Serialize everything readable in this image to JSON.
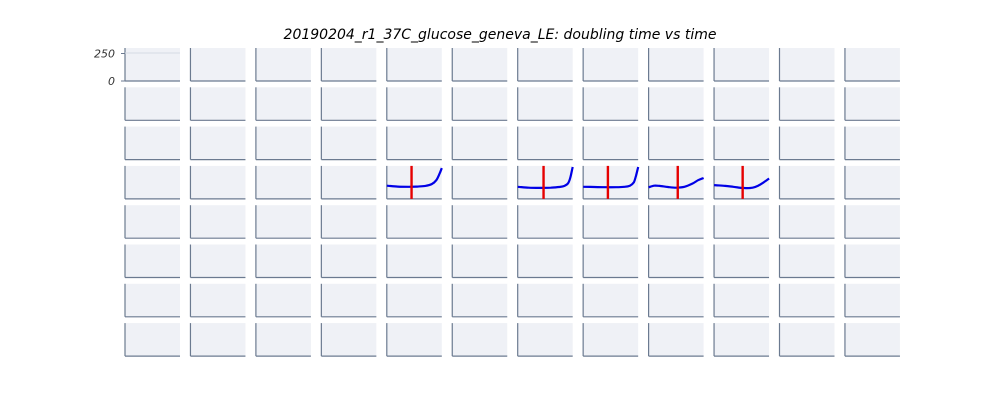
{
  "chart_data": {
    "type": "line",
    "title": "20190204_r1_37C_glucose_geneva_LE: doubling time vs time",
    "rows": 8,
    "cols": 12,
    "y_ticks": [
      "250",
      "0"
    ],
    "ylim": [
      0,
      300
    ],
    "xlim": [
      0,
      1
    ],
    "colors": {
      "line": "#0000e6",
      "marker": "#e60000",
      "panel_bg": "#eff1f6",
      "axis": "#6b7a90"
    },
    "panels": [
      {
        "row": 3,
        "col": 4,
        "x": [
          0,
          0.2,
          0.4,
          0.55,
          0.7,
          0.82,
          0.9,
          0.96,
          1.0
        ],
        "y": [
          120,
          112,
          110,
          112,
          118,
          135,
          170,
          230,
          280
        ],
        "marker_x": 0.45
      },
      {
        "row": 3,
        "col": 6,
        "x": [
          0,
          0.2,
          0.4,
          0.6,
          0.75,
          0.85,
          0.92,
          0.96,
          1.0
        ],
        "y": [
          110,
          102,
          100,
          102,
          108,
          118,
          145,
          200,
          290
        ],
        "marker_x": 0.47
      },
      {
        "row": 3,
        "col": 7,
        "x": [
          0,
          0.2,
          0.4,
          0.6,
          0.75,
          0.85,
          0.92,
          0.96,
          1.0
        ],
        "y": [
          110,
          108,
          106,
          106,
          110,
          120,
          150,
          210,
          290
        ],
        "marker_x": 0.45
      },
      {
        "row": 3,
        "col": 8,
        "x": [
          0,
          0.1,
          0.2,
          0.35,
          0.5,
          0.65,
          0.8,
          0.9,
          1.0
        ],
        "y": [
          105,
          120,
          118,
          108,
          102,
          110,
          140,
          170,
          190
        ],
        "marker_x": 0.53
      },
      {
        "row": 3,
        "col": 9,
        "x": [
          0,
          0.2,
          0.35,
          0.5,
          0.6,
          0.7,
          0.8,
          0.9,
          1.0
        ],
        "y": [
          125,
          118,
          110,
          100,
          98,
          102,
          120,
          150,
          185
        ],
        "marker_x": 0.52
      }
    ]
  }
}
